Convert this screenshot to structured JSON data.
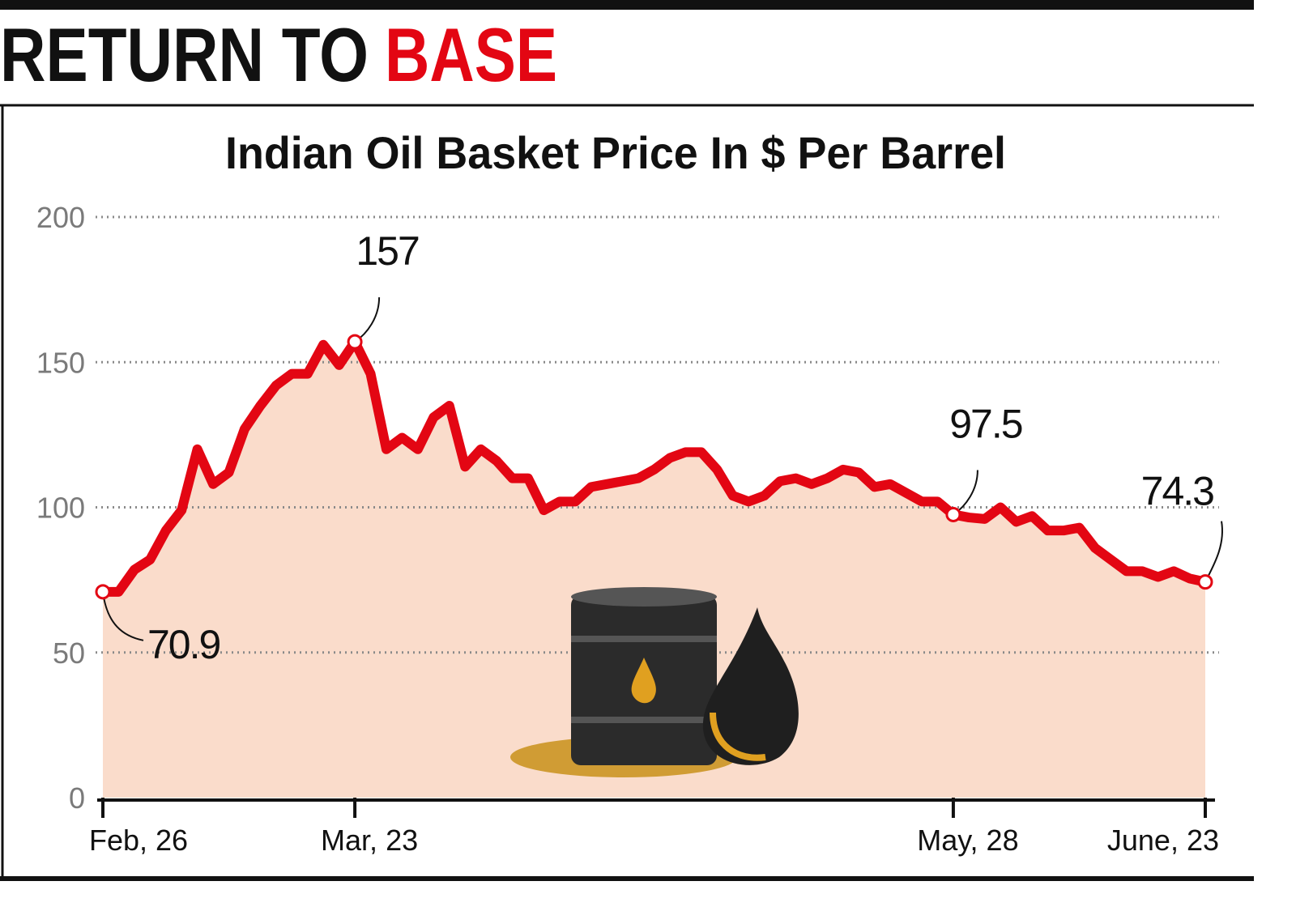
{
  "header": {
    "title": "RETURN TO",
    "title_highlight": "BASE"
  },
  "chart_data": {
    "type": "line",
    "title": "Indian Oil Basket Price In $ Per Barrel",
    "categories": [
      "Feb, 26",
      null,
      null,
      null,
      null,
      null,
      null,
      null,
      null,
      null,
      null,
      null,
      null,
      null,
      null,
      null,
      "Mar, 23",
      null,
      null,
      null,
      null,
      null,
      null,
      null,
      null,
      null,
      null,
      null,
      null,
      null,
      null,
      null,
      null,
      null,
      null,
      null,
      null,
      null,
      null,
      null,
      null,
      null,
      null,
      null,
      null,
      null,
      null,
      null,
      null,
      null,
      null,
      null,
      null,
      null,
      "May, 28",
      null,
      null,
      null,
      null,
      null,
      null,
      null,
      null,
      null,
      null,
      null,
      null,
      null,
      null,
      null,
      "June, 23"
    ],
    "values": [
      70.9,
      70.9,
      78.5,
      82,
      92,
      99,
      120,
      108,
      112,
      127,
      135,
      142,
      146,
      146,
      156,
      149,
      157,
      146,
      120,
      124,
      120,
      131,
      135,
      114,
      120,
      116,
      110,
      110,
      99,
      102,
      102,
      107,
      108,
      109,
      110,
      113,
      117,
      119,
      119,
      113,
      104,
      102,
      104,
      109,
      110,
      108,
      110,
      113,
      112,
      107,
      108,
      105,
      102,
      102,
      97.5,
      96.5,
      96,
      100,
      95,
      97,
      92,
      92,
      93,
      86,
      82,
      78,
      78,
      76,
      78,
      75.5,
      74.3
    ],
    "labeled_points": [
      0,
      16,
      54,
      70
    ],
    "color": "#e30613",
    "fill_color": "#fadccb",
    "ylim": [
      0,
      200
    ],
    "yticks": [
      0,
      50,
      100,
      150,
      200
    ],
    "grid": true
  }
}
